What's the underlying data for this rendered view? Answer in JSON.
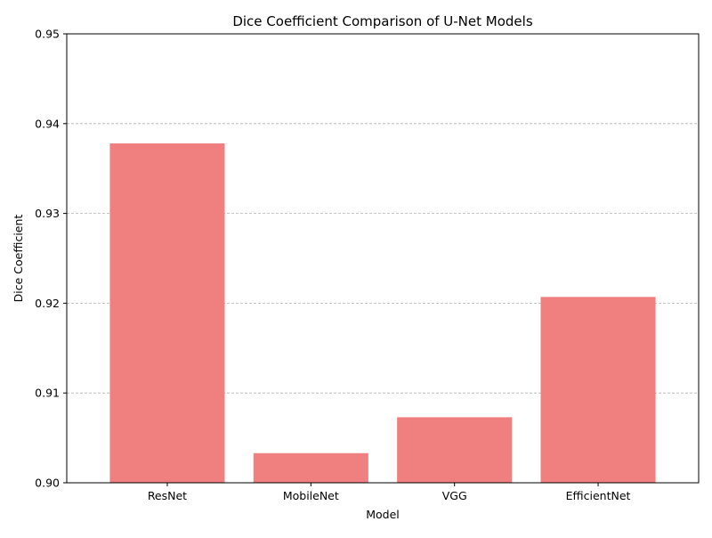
{
  "chart_data": {
    "type": "bar",
    "title": "Dice Coefficient Comparison of U-Net Models",
    "xlabel": "Model",
    "ylabel": "Dice Coefficient",
    "categories": [
      "ResNet",
      "MobileNet",
      "VGG",
      "EfficientNet"
    ],
    "values": [
      0.9378,
      0.9033,
      0.9073,
      0.9207
    ],
    "ylim": [
      0.9,
      0.95
    ],
    "yticks": [
      "0.90",
      "0.91",
      "0.92",
      "0.93",
      "0.94",
      "0.95"
    ],
    "grid": "y-dashed",
    "colors": {
      "bar": "#f08080",
      "grid": "#b0b0b0",
      "axis": "#000000"
    }
  }
}
